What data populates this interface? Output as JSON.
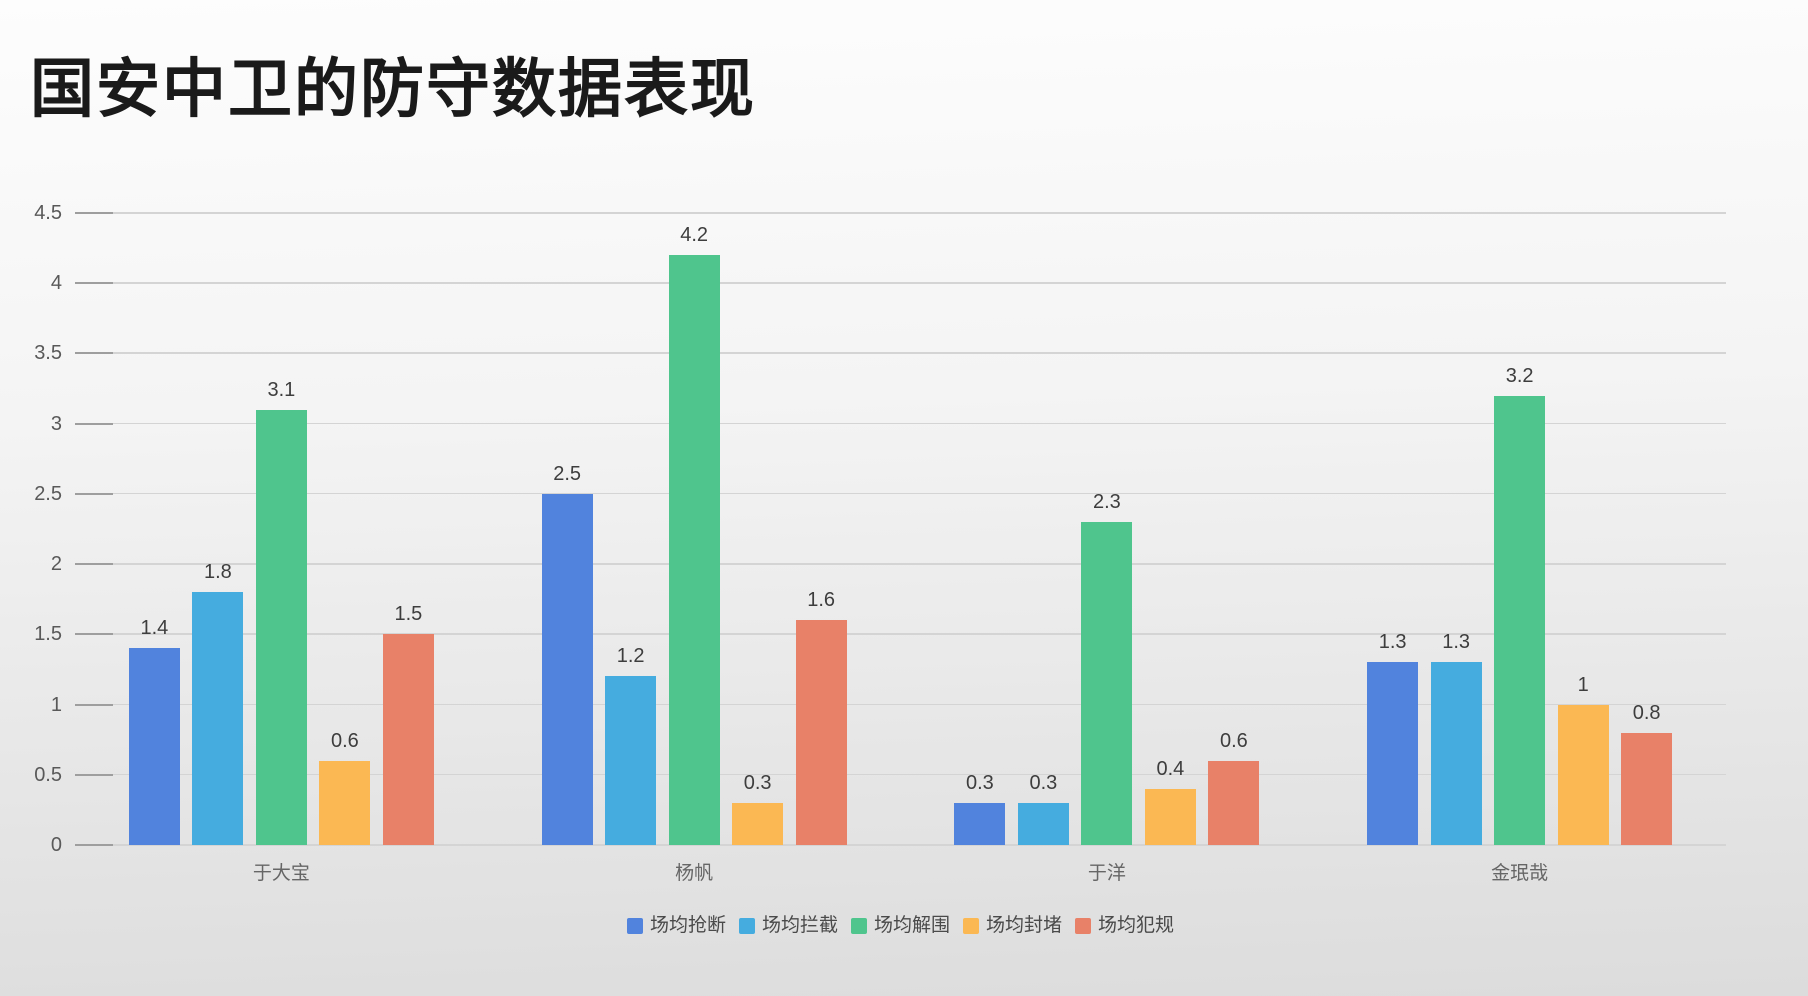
{
  "title": "国安中卫的防守数据表现",
  "chart_data": {
    "type": "bar",
    "categories": [
      "于大宝",
      "杨帆",
      "于洋",
      "金珉哉"
    ],
    "series": [
      {
        "name": "场均抢断",
        "color": "#5183DD",
        "values": [
          1.4,
          2.5,
          0.3,
          1.3
        ]
      },
      {
        "name": "场均拦截",
        "color": "#45ACDF",
        "values": [
          1.8,
          1.2,
          0.3,
          1.3
        ]
      },
      {
        "name": "场均解围",
        "color": "#4FC58D",
        "values": [
          3.1,
          4.2,
          2.3,
          3.2
        ]
      },
      {
        "name": "场均封堵",
        "color": "#FBB853",
        "values": [
          0.6,
          0.3,
          0.4,
          1
        ]
      },
      {
        "name": "场均犯规",
        "color": "#E88168",
        "values": [
          1.5,
          1.6,
          0.6,
          0.8
        ]
      }
    ],
    "ylim": [
      0,
      4.5
    ],
    "ytick_step": 0.5,
    "ytick_labels": [
      "0",
      "0.5",
      "1",
      "1.5",
      "2",
      "2.5",
      "3",
      "3.5",
      "4",
      "4.5"
    ],
    "grid": true,
    "value_labels": true,
    "legend_position": "bottom",
    "title": "国安中卫的防守数据表现"
  },
  "colors": {
    "title_text": "#1a1a1a",
    "axis_tick_text": "#595959",
    "category_text": "#666666",
    "value_label_text": "#3d3d3d",
    "legend_text": "#4a4a4a",
    "gridline": "#d4d4d4",
    "axis_tick_mark": "#9e9e9e"
  }
}
